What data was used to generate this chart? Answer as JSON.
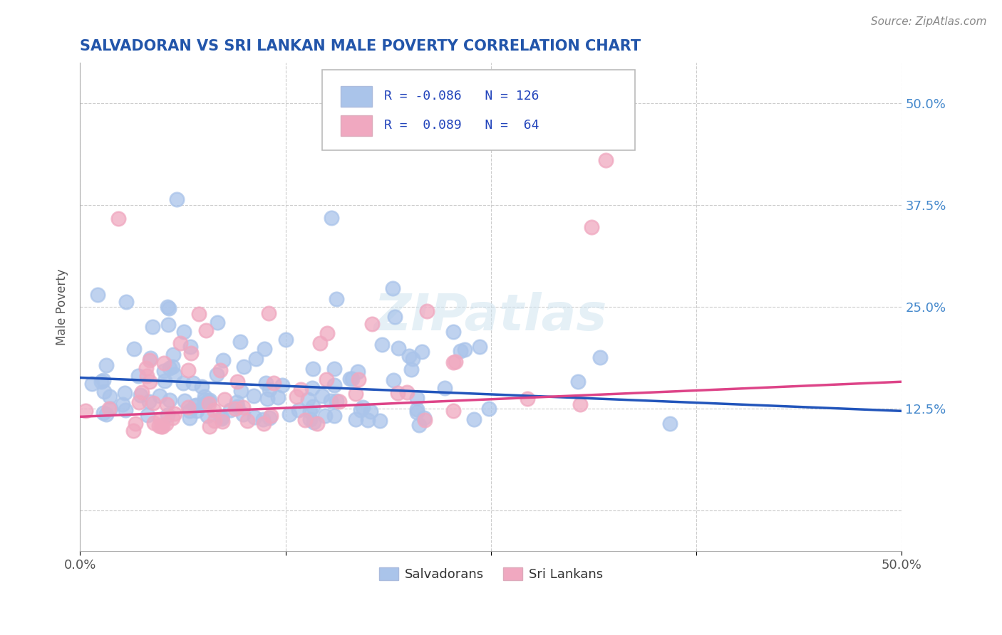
{
  "title": "SALVADORAN VS SRI LANKAN MALE POVERTY CORRELATION CHART",
  "source": "Source: ZipAtlas.com",
  "ylabel": "Male Poverty",
  "xlim": [
    0.0,
    0.5
  ],
  "ylim": [
    -0.05,
    0.55
  ],
  "yticks": [
    0.0,
    0.125,
    0.25,
    0.375,
    0.5
  ],
  "xticks": [
    0.0,
    0.125,
    0.25,
    0.375,
    0.5
  ],
  "xtick_labels": [
    "0.0%",
    "",
    "",
    "",
    "50.0%"
  ],
  "right_ytick_labels": [
    "",
    "12.5%",
    "25.0%",
    "37.5%",
    "50.0%"
  ],
  "salvadoran_color": "#aac4ea",
  "srilanka_color": "#f0a8c0",
  "trend_blue": "#2255bb",
  "trend_pink": "#dd4488",
  "background": "#ffffff",
  "grid_color": "#cccccc",
  "title_color": "#2255aa",
  "salvadoran_R": -0.086,
  "salvadoran_N": 126,
  "srilanka_R": 0.089,
  "srilanka_N": 64,
  "trend_blue_start_y": 0.163,
  "trend_blue_end_y": 0.122,
  "trend_pink_start_y": 0.115,
  "trend_pink_end_y": 0.158
}
